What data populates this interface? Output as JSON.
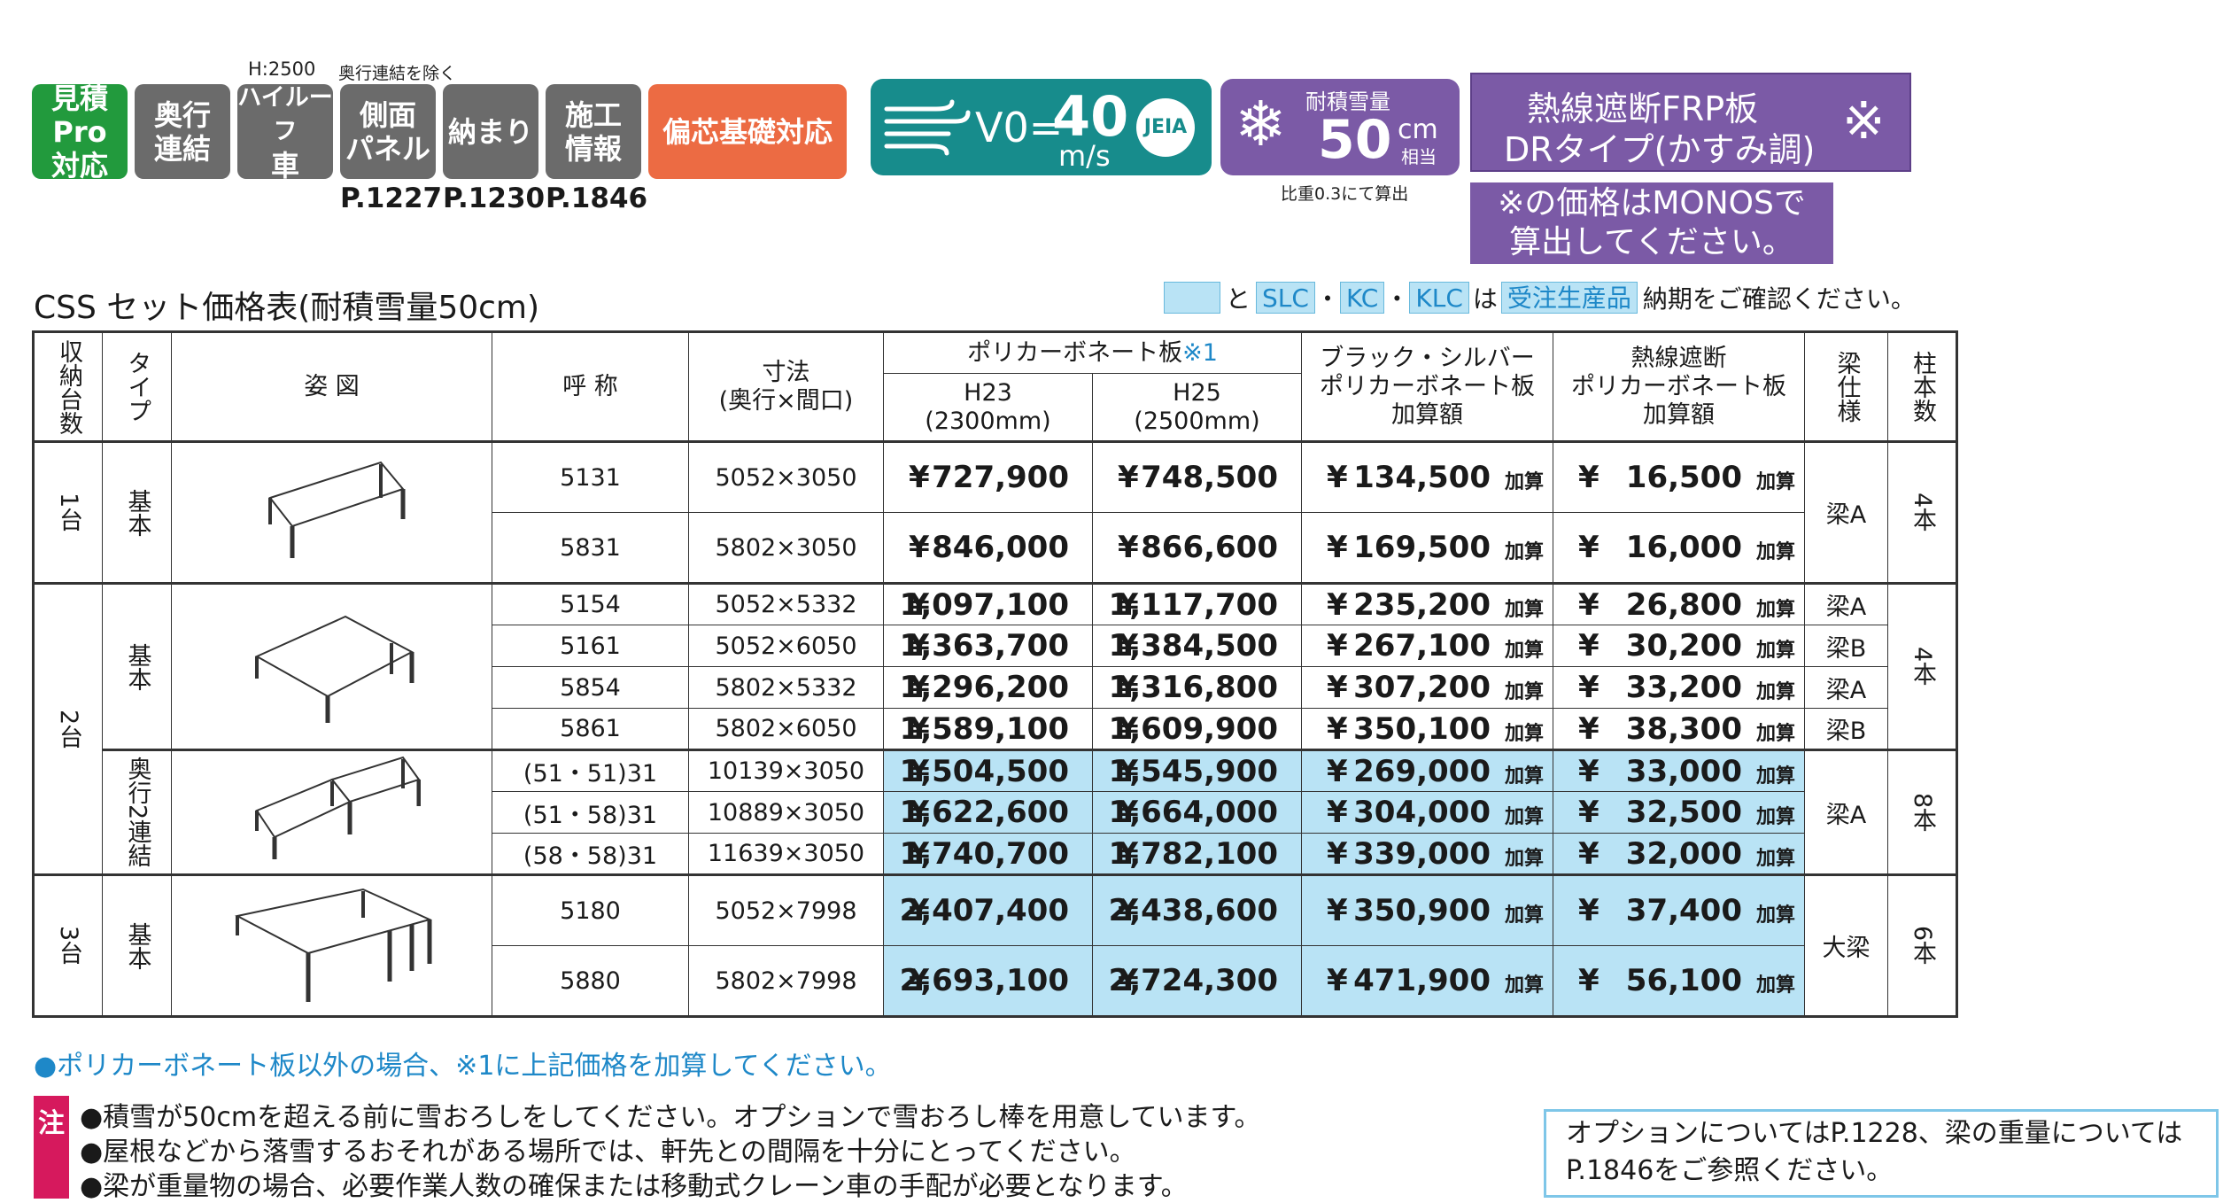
{
  "top_notes": {
    "h2500": "H:2500",
    "okuyuki_excl": "奥行連結を除く",
    "snow_calc": "比重0.3にて算出"
  },
  "badges": [
    {
      "l1": "見積Pro",
      "l2": "対応"
    },
    {
      "l1": "奥行",
      "l2": "連結"
    },
    {
      "l1": "ハイルーフ",
      "l2": "車"
    },
    {
      "l1": "側面",
      "l2": "パネル"
    },
    {
      "l1": "納まり",
      "l2": ""
    },
    {
      "l1": "施工",
      "l2": "情報"
    },
    {
      "l1": "偏芯基礎対応",
      "l2": ""
    }
  ],
  "page_refs": [
    "P.1227",
    "P.1230",
    "P.1846"
  ],
  "wind": {
    "v": "V0=",
    "value": "40",
    "unit": "m/s",
    "jeia": "JEIA"
  },
  "snow": {
    "label": "耐積雪量",
    "value": "50",
    "unit": "cm",
    "sub": "相当"
  },
  "frp": {
    "l1": "熱線遮断FRP板",
    "l2": "DRタイプ(かすみ調)",
    "mark": "※"
  },
  "monos": {
    "l1": "※の価格はMONOSで",
    "l2": "算出してください。"
  },
  "title": "CSS セット価格表(耐積雪量50cm)",
  "legend": {
    "to": "と",
    "slc": "SLC",
    "dot": "・",
    "kc": "KC",
    "klc": "KLC",
    "wa": "は",
    "juchu": "受注生産品",
    "tail": "納期をご確認ください。"
  },
  "table": {
    "headers": {
      "count": "収納台数",
      "type": "タイプ",
      "figure": "姿 図",
      "name": "呼 称",
      "dim_l1": "寸法",
      "dim_l2": "(奥行×間口)",
      "poly": "ポリカーボネート板",
      "poly_note": "※1",
      "h23": "H23",
      "h23_mm": "(2300mm)",
      "h25": "H25",
      "h25_mm": "(2500mm)",
      "bs_l1": "ブラック・シルバー",
      "bs_l2": "ポリカーボネート板",
      "bs_l3": "加算額",
      "ht_l1": "熱線遮断",
      "ht_l2": "ポリカーボネート板",
      "ht_l3": "加算額",
      "beam": "梁仕様",
      "posts": "柱本数"
    },
    "yen": "¥",
    "add_suffix": "加算",
    "groups": {
      "g1": "1台",
      "g2": "2台",
      "g3": "3台",
      "kihon": "基本",
      "okuyuki": "奥行2連結"
    },
    "rows": [
      {
        "code": "5131",
        "dim": "5052×3050",
        "h23": "727,900",
        "h25": "748,500",
        "bs": "134,500",
        "ht": "16,500"
      },
      {
        "code": "5831",
        "dim": "5802×3050",
        "h23": "846,000",
        "h25": "866,600",
        "bs": "169,500",
        "ht": "16,000"
      },
      {
        "code": "5154",
        "dim": "5052×5332",
        "h23": "1,097,100",
        "h25": "1,117,700",
        "bs": "235,200",
        "ht": "26,800",
        "beam": "梁A"
      },
      {
        "code": "5161",
        "dim": "5052×6050",
        "h23": "1,363,700",
        "h25": "1,384,500",
        "bs": "267,100",
        "ht": "30,200",
        "beam": "梁B"
      },
      {
        "code": "5854",
        "dim": "5802×5332",
        "h23": "1,296,200",
        "h25": "1,316,800",
        "bs": "307,200",
        "ht": "33,200",
        "beam": "梁A"
      },
      {
        "code": "5861",
        "dim": "5802×6050",
        "h23": "1,589,100",
        "h25": "1,609,900",
        "bs": "350,100",
        "ht": "38,300",
        "beam": "梁B"
      },
      {
        "code": "(51・51)31",
        "dim": "10139×3050",
        "h23": "1,504,500",
        "h25": "1,545,900",
        "bs": "269,000",
        "ht": "33,000"
      },
      {
        "code": "(51・58)31",
        "dim": "10889×3050",
        "h23": "1,622,600",
        "h25": "1,664,000",
        "bs": "304,000",
        "ht": "32,500"
      },
      {
        "code": "(58・58)31",
        "dim": "11639×3050",
        "h23": "1,740,700",
        "h25": "1,782,100",
        "bs": "339,000",
        "ht": "32,000"
      },
      {
        "code": "5180",
        "dim": "5052×7998",
        "h23": "2,407,400",
        "h25": "2,438,600",
        "bs": "350,900",
        "ht": "37,400"
      },
      {
        "code": "5880",
        "dim": "5802×7998",
        "h23": "2,693,100",
        "h25": "2,724,300",
        "bs": "471,900",
        "ht": "56,100"
      }
    ],
    "beam_g1": "梁A",
    "posts_g1": "4本",
    "posts_g2a": "4本",
    "beam_g2b": "梁A",
    "posts_g2b": "8本",
    "beam_g3": "大梁",
    "posts_g3": "6本"
  },
  "footnote": "●ポリカーボネート板以外の場合、※1に上記価格を加算してください。",
  "notes": {
    "tag": "注",
    "lines": [
      "●積雪が50cmを超える前に雪おろしをしてください。オプションで雪おろし棒を用意しています。",
      "●屋根などから落雪するおそれがある場所では、軒先との間隔を十分にとってください。",
      "●梁が重量物の場合、必要作業人数の確保または移動式クレーン車の手配が必要となります。"
    ]
  },
  "option_box": {
    "l1": "オプションについてはP.1228、梁の重量については",
    "l2": "P.1846をご参照ください。"
  }
}
